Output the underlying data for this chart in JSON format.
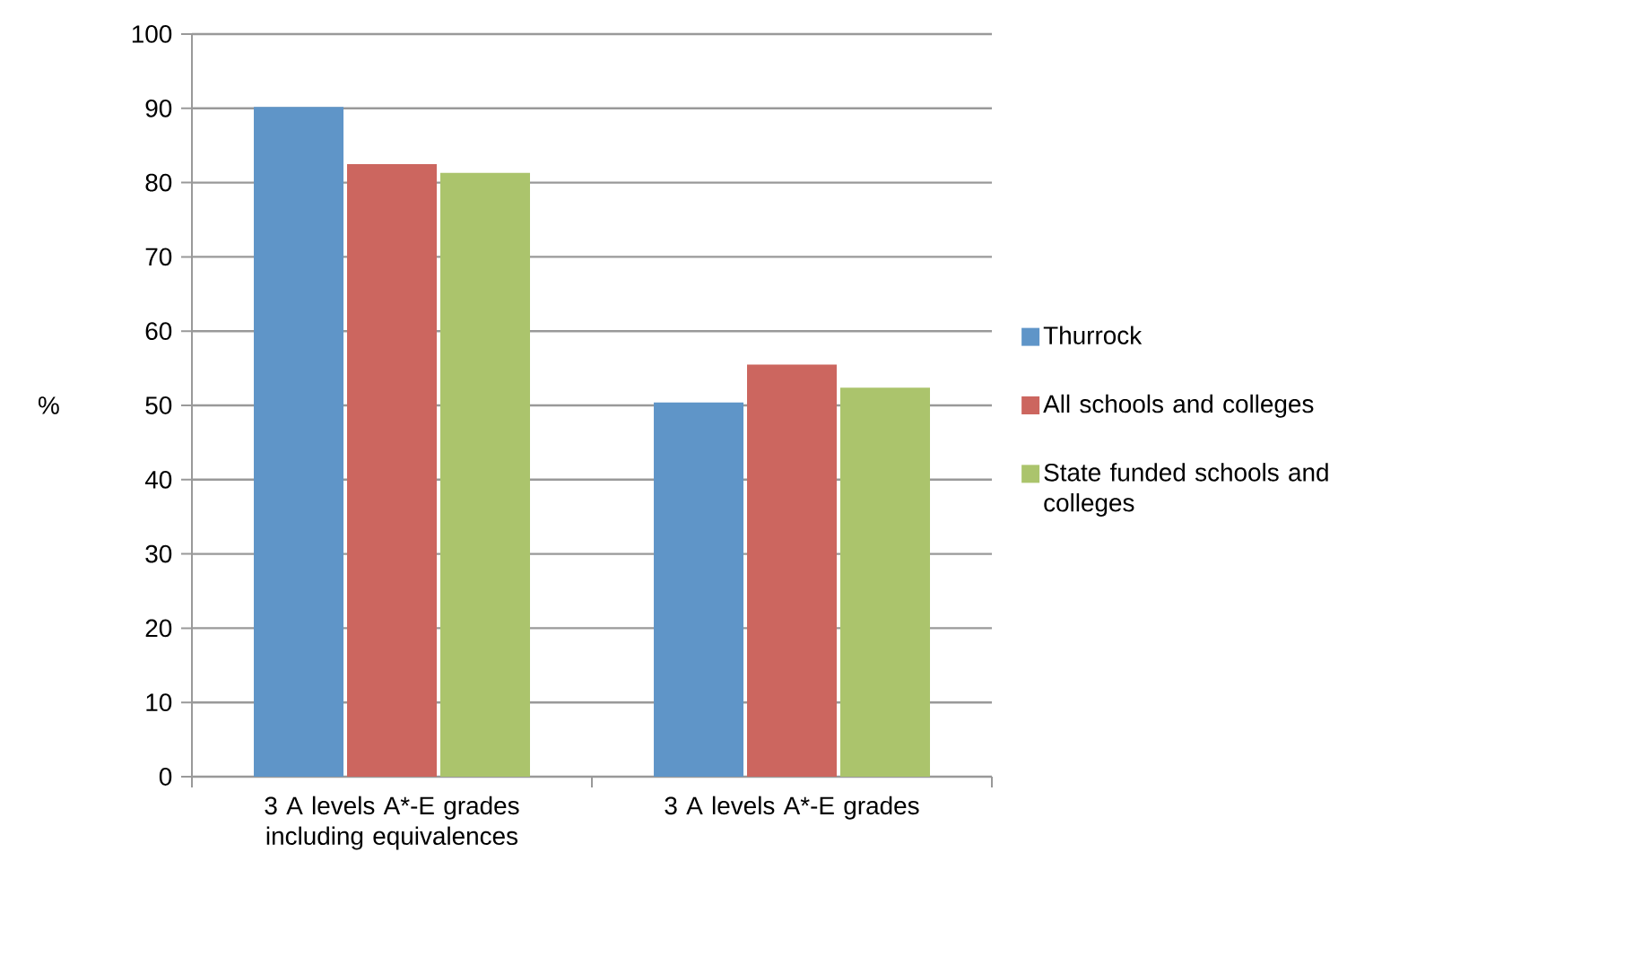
{
  "chart_data": {
    "type": "bar",
    "ylabel": "%",
    "categories": [
      "3 A levels A*-E grades including equivalences",
      "3 A levels A*-E grades"
    ],
    "series": [
      {
        "name": "Thurrock",
        "color": "#5f95c8",
        "values": [
          90.2,
          50.4
        ]
      },
      {
        "name": "All schools and colleges",
        "color": "#cc665f",
        "values": [
          82.5,
          55.5
        ]
      },
      {
        "name": "State funded schools and colleges",
        "color": "#abc46c",
        "values": [
          81.3,
          52.4
        ]
      }
    ],
    "ylim": [
      0,
      100
    ],
    "yticks": [
      0,
      10,
      20,
      30,
      40,
      50,
      60,
      70,
      80,
      90,
      100
    ],
    "grid": "y",
    "legend": "right"
  }
}
